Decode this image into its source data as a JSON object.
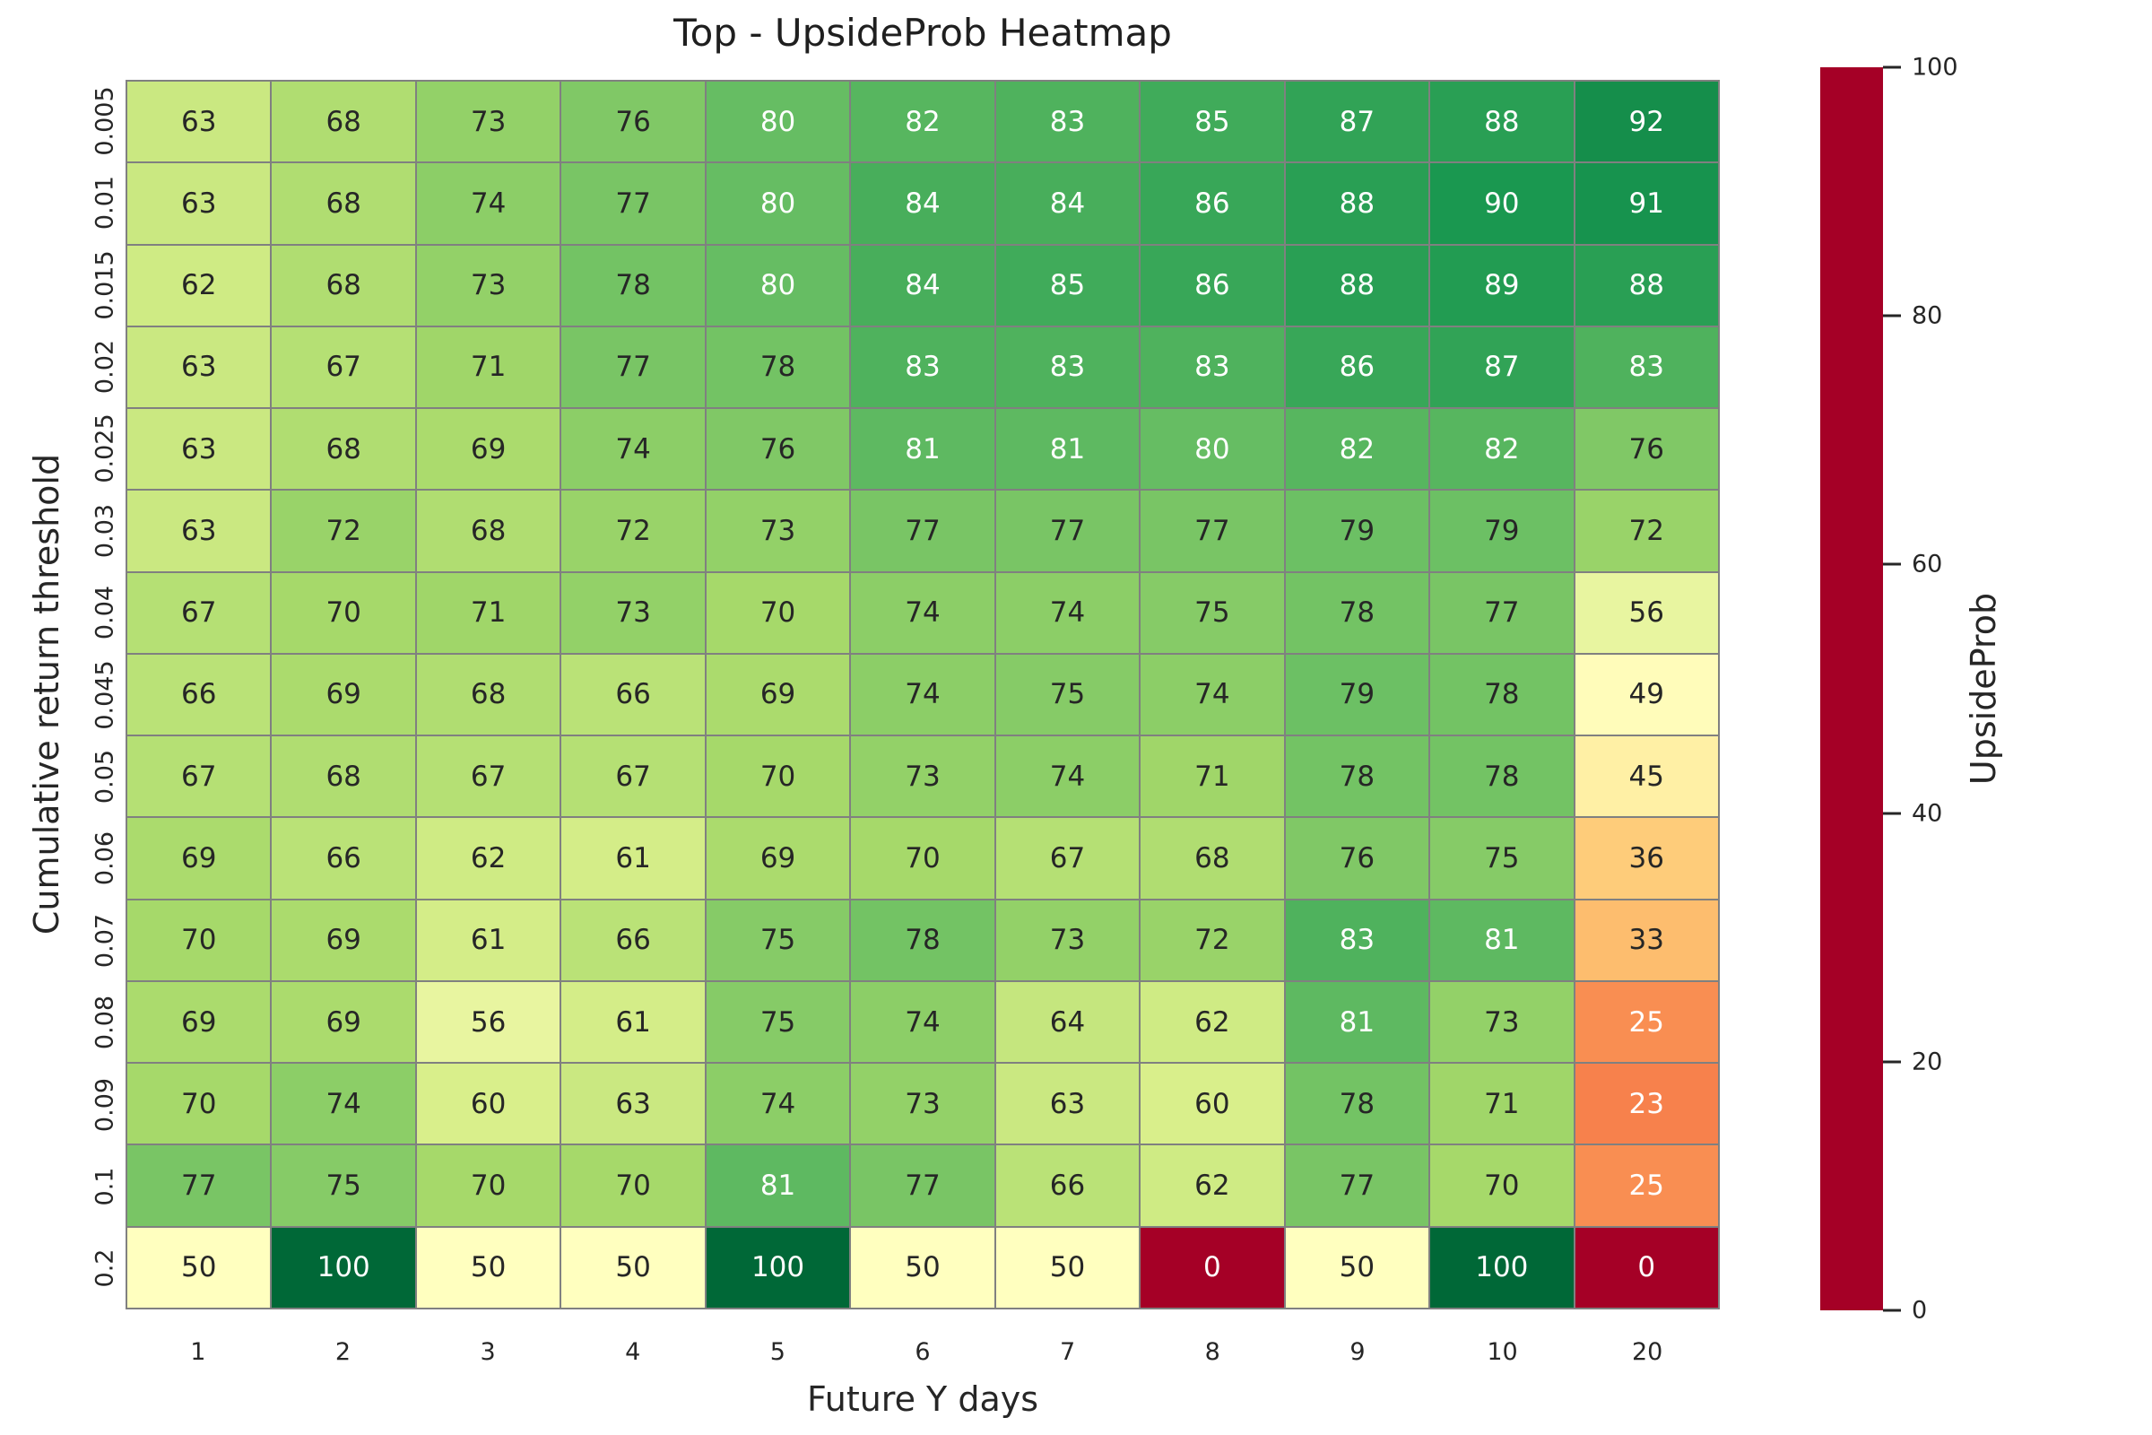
{
  "title": "Top - UpsideProb Heatmap",
  "chart_data": {
    "type": "heatmap",
    "title": "Top - UpsideProb Heatmap",
    "xlabel": "Future Y days",
    "ylabel": "Cumulative return threshold",
    "x_categories": [
      "1",
      "2",
      "3",
      "4",
      "5",
      "6",
      "7",
      "8",
      "9",
      "10",
      "20"
    ],
    "y_categories": [
      "0.005",
      "0.01",
      "0.015",
      "0.02",
      "0.025",
      "0.03",
      "0.04",
      "0.045",
      "0.05",
      "0.06",
      "0.07",
      "0.08",
      "0.09",
      "0.1",
      "0.2"
    ],
    "values": [
      [
        63,
        68,
        73,
        76,
        80,
        82,
        83,
        85,
        87,
        88,
        92
      ],
      [
        63,
        68,
        74,
        77,
        80,
        84,
        84,
        86,
        88,
        90,
        91
      ],
      [
        62,
        68,
        73,
        78,
        80,
        84,
        85,
        86,
        88,
        89,
        88
      ],
      [
        63,
        67,
        71,
        77,
        78,
        83,
        83,
        83,
        86,
        87,
        83
      ],
      [
        63,
        68,
        69,
        74,
        76,
        81,
        81,
        80,
        82,
        82,
        76
      ],
      [
        63,
        72,
        68,
        72,
        73,
        77,
        77,
        77,
        79,
        79,
        72
      ],
      [
        67,
        70,
        71,
        73,
        70,
        74,
        74,
        75,
        78,
        77,
        56
      ],
      [
        66,
        69,
        68,
        66,
        69,
        74,
        75,
        74,
        79,
        78,
        49
      ],
      [
        67,
        68,
        67,
        67,
        70,
        73,
        74,
        71,
        78,
        78,
        45
      ],
      [
        69,
        66,
        62,
        61,
        69,
        70,
        67,
        68,
        76,
        75,
        36
      ],
      [
        70,
        69,
        61,
        66,
        75,
        78,
        73,
        72,
        83,
        81,
        33
      ],
      [
        69,
        69,
        56,
        61,
        75,
        74,
        64,
        62,
        81,
        73,
        25
      ],
      [
        70,
        74,
        60,
        63,
        74,
        73,
        63,
        60,
        78,
        71,
        23
      ],
      [
        77,
        75,
        70,
        70,
        81,
        77,
        66,
        62,
        77,
        70,
        25
      ],
      [
        50,
        100,
        50,
        50,
        100,
        50,
        50,
        0,
        50,
        100,
        0
      ]
    ],
    "value_range": [
      0,
      100
    ],
    "colorbar": {
      "label": "UpsideProb",
      "ticks": [
        0,
        20,
        40,
        60,
        80,
        100
      ],
      "min": 0,
      "max": 100
    },
    "colormap": {
      "name": "RdYlGn",
      "stops": [
        "#a50026",
        "#d73027",
        "#f46d43",
        "#fdae61",
        "#fee08b",
        "#ffffbf",
        "#d9ef8b",
        "#a6d96a",
        "#66bd63",
        "#1a9850",
        "#006837"
      ]
    },
    "grid_line_color": "#808080",
    "annotation_dark_text": "#262626",
    "annotation_light_text": "#ffffff",
    "legend_position": "right",
    "grid_on": true
  }
}
